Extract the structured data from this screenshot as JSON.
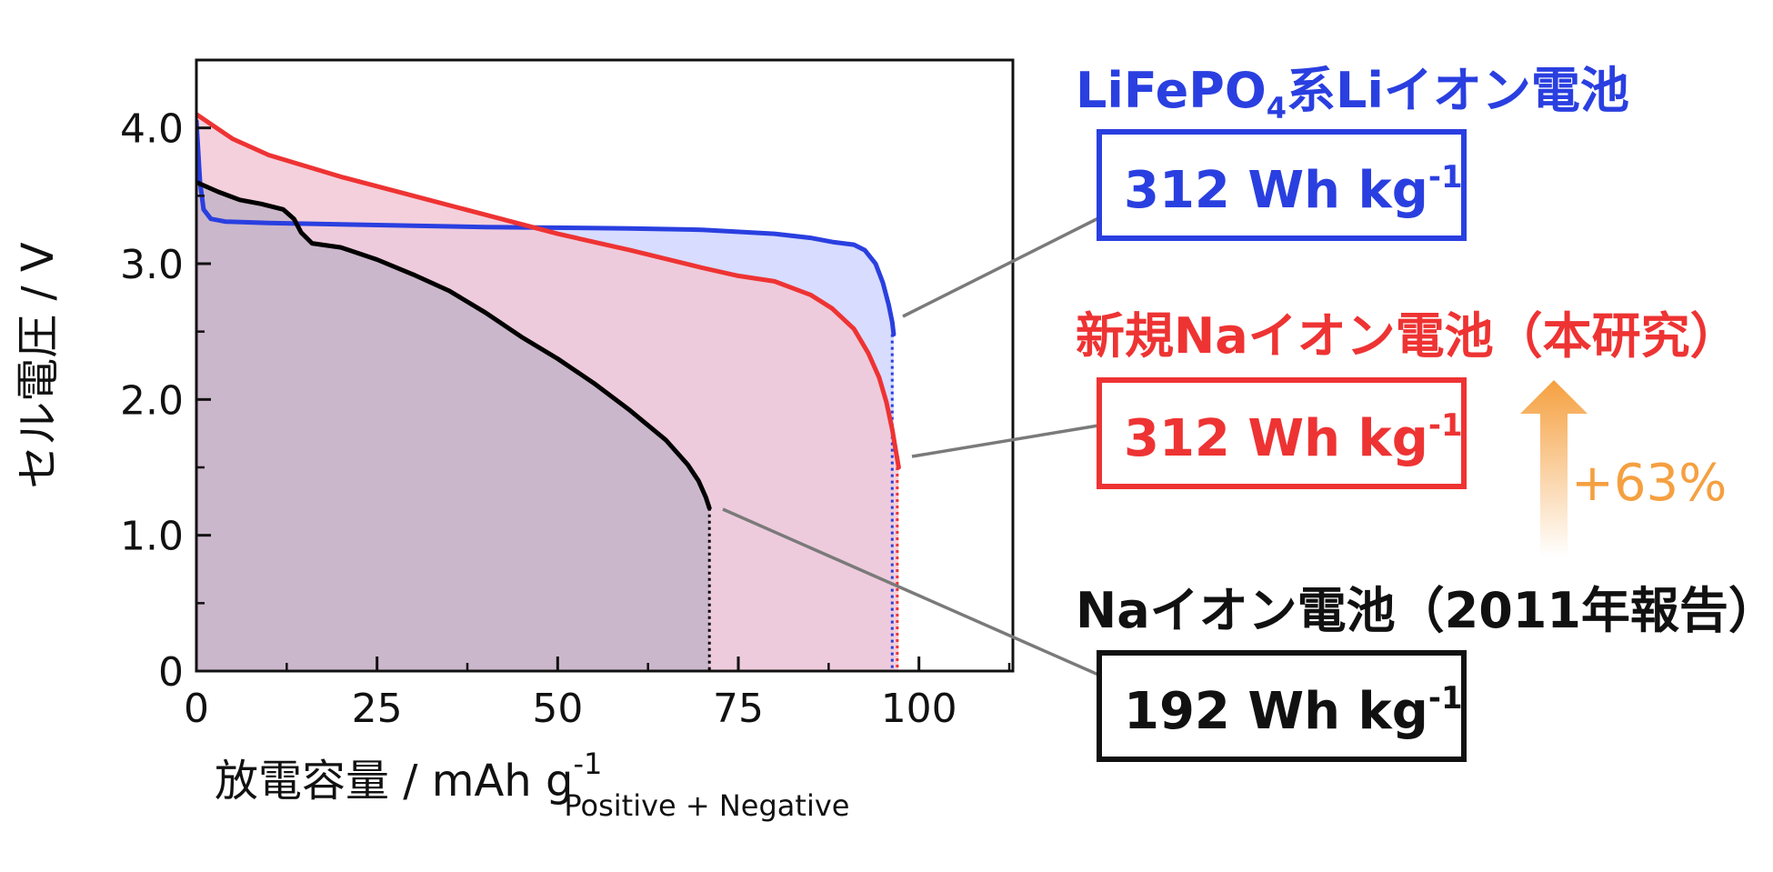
{
  "chart_data": {
    "type": "line",
    "xlabel": "放電容量 / mAh g",
    "xlabel_sup": "-1",
    "xlabel_sub": "Positive + Negative",
    "ylabel": "セル電圧 / V",
    "xlim": [
      0,
      113
    ],
    "ylim": [
      0,
      4.5
    ],
    "xticks": [
      0,
      25,
      50,
      75,
      100
    ],
    "yticks": [
      0,
      1.0,
      2.0,
      3.0,
      4.0
    ],
    "xtick_labels": [
      "0",
      "25",
      "50",
      "75",
      "100"
    ],
    "ytick_labels": [
      "0",
      "1.0",
      "2.0",
      "3.0",
      "4.0"
    ],
    "series": [
      {
        "name": "LiFePO4系Liイオン電池",
        "color": "#2a3fe0",
        "fill": "#d8dcff",
        "x": [
          0,
          0.5,
          1,
          2,
          4,
          10,
          20,
          40,
          60,
          70,
          80,
          85,
          88,
          91,
          92.5,
          94,
          95,
          95.8,
          96.3,
          96.5
        ],
        "y": [
          4.05,
          3.6,
          3.4,
          3.33,
          3.31,
          3.3,
          3.29,
          3.27,
          3.26,
          3.25,
          3.22,
          3.19,
          3.16,
          3.14,
          3.1,
          3.0,
          2.86,
          2.7,
          2.57,
          2.48
        ]
      },
      {
        "name": "新規Naイオン電池（本研究）",
        "color": "#ee3333",
        "fill": "#f2c8d6",
        "x": [
          0,
          5,
          10,
          20,
          30,
          40,
          50,
          60,
          70,
          75,
          80,
          85,
          88,
          91,
          93,
          94.5,
          95.5,
          96.3,
          96.8,
          97.2
        ],
        "y": [
          4.1,
          3.92,
          3.8,
          3.64,
          3.5,
          3.36,
          3.22,
          3.1,
          2.97,
          2.91,
          2.87,
          2.77,
          2.67,
          2.52,
          2.34,
          2.16,
          1.98,
          1.78,
          1.62,
          1.5
        ]
      },
      {
        "name": "Naイオン電池（2011年報告）",
        "color": "#000000",
        "fill": "#c4b4c8",
        "x": [
          0,
          3,
          6,
          9,
          12,
          13.5,
          14.5,
          16,
          20,
          25,
          30,
          35,
          40,
          45,
          50,
          55,
          60,
          65,
          68,
          69.5,
          70.5,
          71
        ],
        "y": [
          3.6,
          3.53,
          3.47,
          3.44,
          3.4,
          3.33,
          3.23,
          3.15,
          3.12,
          3.03,
          2.92,
          2.8,
          2.64,
          2.46,
          2.3,
          2.12,
          1.92,
          1.7,
          1.52,
          1.4,
          1.28,
          1.2
        ]
      }
    ],
    "endpoint_lines": [
      {
        "series": "LiFePO4系Liイオン電池",
        "x": 96.3,
        "color": "#2a3fe0"
      },
      {
        "series": "新規Naイオン電池（本研究）",
        "x": 97.0,
        "color": "#ee3333"
      },
      {
        "series": "Naイオン電池（2011年報告）",
        "x": 71.0,
        "color": "#000000"
      }
    ]
  },
  "annotations": {
    "li": {
      "label_pre": "LiFePO",
      "label_sub": "4",
      "label_post": "系Liイオン電池",
      "energy": "312 Wh kg",
      "energy_sup": "-1",
      "color": "#2a3fe0"
    },
    "na_new": {
      "label": "新規Naイオン電池（本研究）",
      "energy": "312 Wh kg",
      "energy_sup": "-1",
      "color": "#ee3333"
    },
    "na_old": {
      "label": "Naイオン電池（2011年報告）",
      "energy": "192 Wh kg",
      "energy_sup": "-1",
      "color": "#000000"
    },
    "improvement": {
      "text": "+63%",
      "color": "#f5a040"
    }
  }
}
